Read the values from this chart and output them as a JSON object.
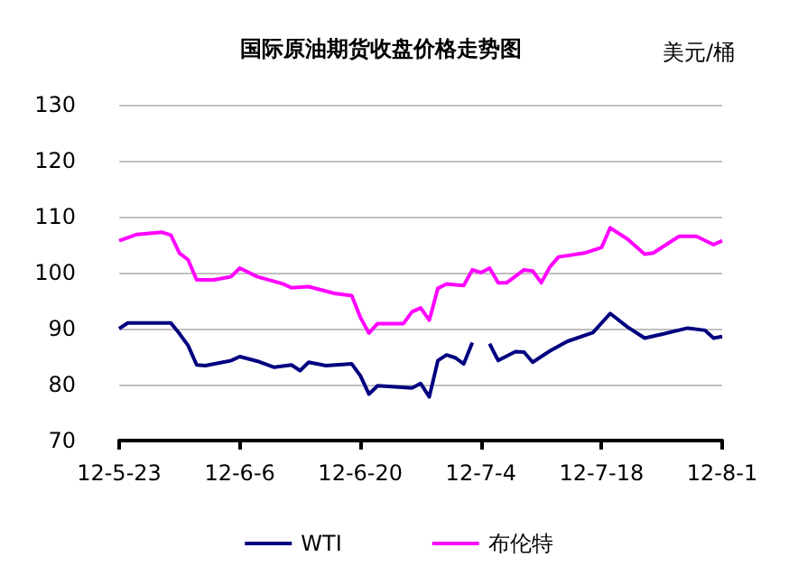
{
  "chart_data": {
    "type": "line",
    "title": "国际原油期货收盘价格走势图",
    "ylabel": "美元/桶",
    "xlim": [
      "--05-23",
      "--08-01"
    ],
    "xticks": [
      {
        "value": "--05-23",
        "label": "12-5-23"
      },
      {
        "value": "--06-06",
        "label": "12-6-6"
      },
      {
        "value": "--06-20",
        "label": "12-6-20"
      },
      {
        "value": "--07-04",
        "label": "12-7-4"
      },
      {
        "value": "--07-18",
        "label": "12-7-18"
      },
      {
        "value": "--08-01",
        "label": "12-8-1"
      }
    ],
    "ylim": [
      70,
      130
    ],
    "yticks": [
      70,
      80,
      90,
      100,
      110,
      120,
      130
    ],
    "grid": "y",
    "legend": "bottom",
    "marker": "none",
    "line_style": "solid",
    "series": [
      {
        "name": "WTI",
        "color": "#000080",
        "x": [
          "--05-23",
          "--05-24",
          "--05-29",
          "--05-30",
          "--05-31",
          "--06-01",
          "--06-02",
          "--06-05",
          "--06-06",
          "--06-08",
          "--06-10",
          "--06-12",
          "--06-13",
          "--06-14",
          "--06-16",
          "--06-19",
          "--06-20",
          "--06-21",
          "--06-22",
          "--06-26",
          "--06-27",
          "--06-28",
          "--06-29",
          "--06-30",
          "--07-01",
          "--07-02",
          "--07-03",
          "--07-04",
          "--07-05",
          "--07-06",
          "--07-08",
          "--07-09",
          "--07-10",
          "--07-12",
          "--07-14",
          "--07-17",
          "--07-19",
          "--07-21",
          "--07-23",
          "--07-25",
          "--07-28",
          "--07-30",
          "--07-31",
          "--08-01"
        ],
        "values": [
          90.0,
          91.0,
          91.0,
          89.1,
          87.0,
          83.5,
          83.4,
          84.3,
          85.0,
          84.2,
          83.1,
          83.5,
          82.5,
          84.0,
          83.4,
          83.7,
          81.6,
          78.3,
          79.8,
          79.4,
          80.2,
          77.8,
          84.3,
          85.3,
          84.8,
          83.7,
          87.5,
          null,
          87.3,
          84.3,
          85.9,
          85.8,
          84.0,
          86.0,
          87.7,
          89.3,
          92.7,
          90.3,
          88.3,
          89.0,
          90.1,
          89.7,
          88.3,
          88.6
        ]
      },
      {
        "name": "布伦特",
        "color": "#ff00ff",
        "x": [
          "--05-23",
          "--05-25",
          "--05-28",
          "--05-29",
          "--05-30",
          "--05-31",
          "--06-01",
          "--06-03",
          "--06-05",
          "--06-06",
          "--06-08",
          "--06-11",
          "--06-12",
          "--06-14",
          "--06-17",
          "--06-19",
          "--06-20",
          "--06-21",
          "--06-22",
          "--06-25",
          "--06-26",
          "--06-27",
          "--06-28",
          "--06-29",
          "--06-30",
          "--07-02",
          "--07-03",
          "--07-04",
          "--07-05",
          "--07-06",
          "--07-07",
          "--07-09",
          "--07-10",
          "--07-11",
          "--07-12",
          "--07-13",
          "--07-16",
          "--07-18",
          "--07-19",
          "--07-21",
          "--07-23",
          "--07-24",
          "--07-27",
          "--07-29",
          "--07-31",
          "--08-01"
        ],
        "values": [
          105.7,
          106.8,
          107.2,
          106.7,
          103.5,
          102.3,
          98.7,
          98.7,
          99.3,
          100.8,
          99.3,
          98.0,
          97.3,
          97.5,
          96.3,
          95.9,
          92.0,
          89.2,
          90.9,
          90.9,
          93.0,
          93.7,
          91.5,
          97.2,
          98.0,
          97.7,
          100.5,
          100.0,
          100.8,
          98.2,
          98.2,
          100.5,
          100.3,
          98.2,
          101.0,
          102.8,
          103.5,
          104.5,
          108.0,
          106.0,
          103.3,
          103.5,
          106.5,
          106.5,
          105.0,
          105.7
        ]
      }
    ]
  }
}
